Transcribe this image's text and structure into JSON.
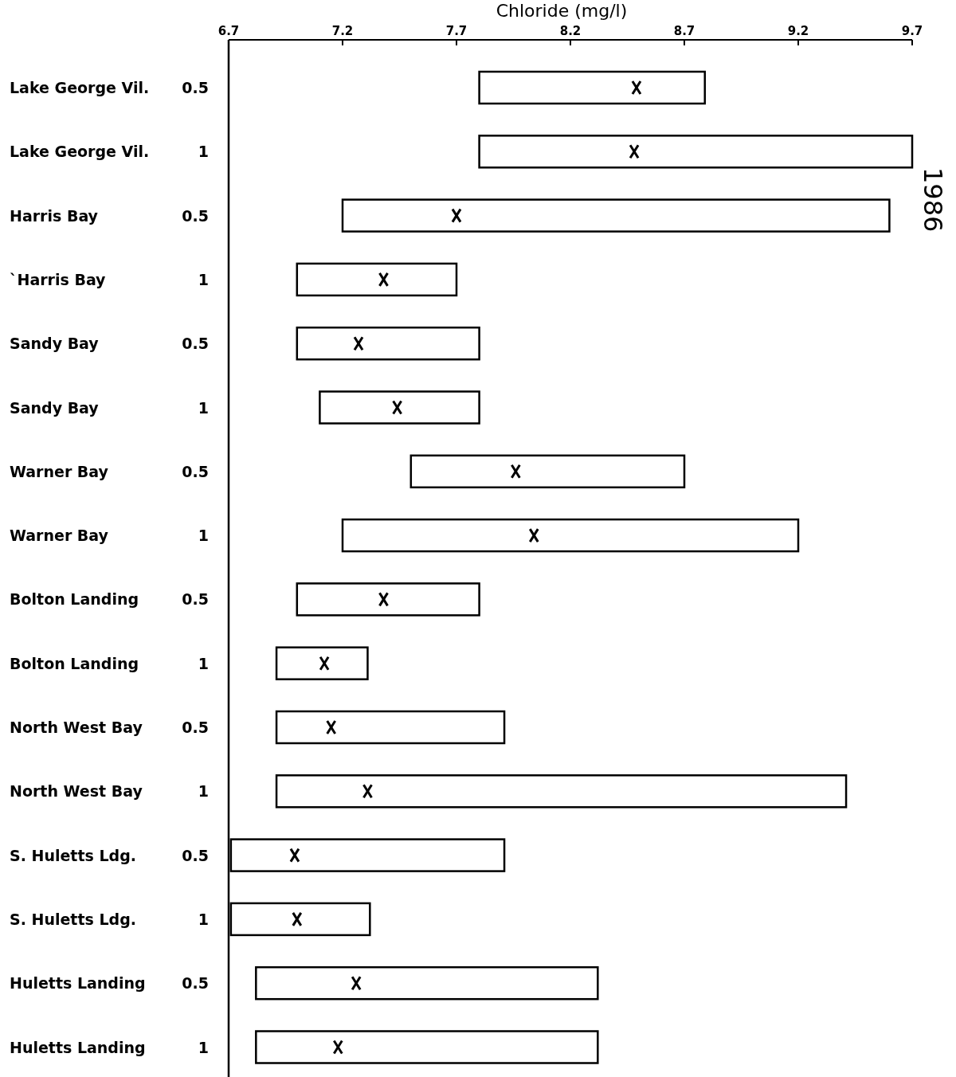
{
  "chart_data": {
    "type": "bar",
    "orientation": "horizontal",
    "xlabel": "Chloride (mg/l)",
    "categories": [
      "Lake George Vil.",
      "Lake George Vil.",
      "Harris Bay",
      "`Harris Bay",
      "Sandy Bay",
      "Sandy Bay",
      "Warner Bay",
      "Warner Bay",
      "Bolton Landing",
      "Bolton Landing",
      "North West Bay",
      "North West Bay",
      "S. Huletts Ldg.",
      "S. Huletts Ldg.",
      "Huletts Landing",
      "Huletts Landing"
    ],
    "xlim": [
      6.7,
      9.7
    ],
    "xticks": [
      6.7,
      7.2,
      7.7,
      8.2,
      8.7,
      9.2,
      9.7
    ],
    "grid": false,
    "series": [
      {
        "type": "bar",
        "color": "#ffffff",
        "base": [
          7.8,
          7.8,
          7.2,
          7.0,
          7.0,
          7.1,
          7.5,
          7.2,
          7.0,
          6.91,
          6.91,
          6.91,
          6.71,
          6.71,
          6.82,
          6.82
        ],
        "values": [
          0.99,
          1.9,
          2.4,
          0.7,
          0.8,
          0.7,
          1.2,
          2.0,
          0.8,
          0.4,
          1.0,
          2.5,
          1.2,
          0.61,
          1.5,
          1.5
        ]
      },
      {
        "type": "scatter",
        "color": "#000000",
        "marker": "cross",
        "values": [
          8.49,
          8.48,
          7.7,
          7.38,
          7.27,
          7.44,
          7.96,
          8.04,
          7.38,
          7.12,
          7.15,
          7.31,
          6.99,
          7.0,
          7.26,
          7.18
        ]
      }
    ],
    "annotations": [
      "0.5",
      "1",
      "0.5",
      "1",
      "0.5",
      "1",
      "0.5",
      "1",
      "0.5",
      "1",
      "0.5",
      "1",
      "0.5",
      "1",
      "0.5",
      "1",
      "1986"
    ]
  }
}
